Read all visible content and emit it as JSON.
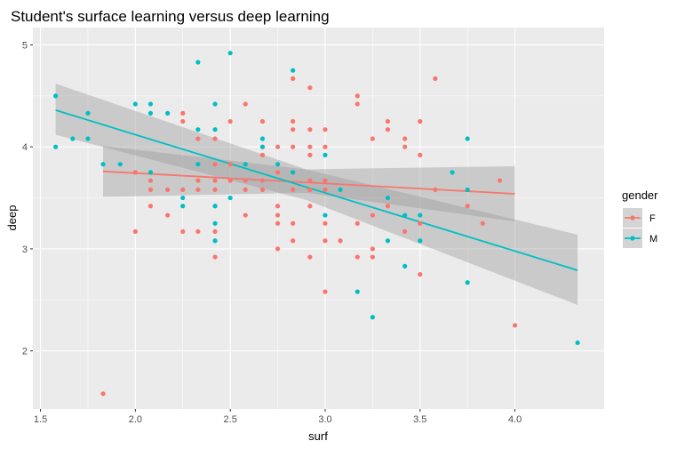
{
  "chart_data": {
    "type": "scatter",
    "title": "Student's surface learning versus deep learning",
    "xlabel": "surf",
    "ylabel": "deep",
    "xlim": [
      1.46,
      4.47
    ],
    "ylim": [
      1.43,
      5.17
    ],
    "xticks": [
      "1.5",
      "2.0",
      "2.5",
      "3.0",
      "3.5",
      "4.0"
    ],
    "yticks": [
      "2",
      "3",
      "4",
      "5"
    ],
    "grid": true,
    "legend": {
      "title": "gender",
      "position": "right"
    },
    "series": [
      {
        "name": "F",
        "color": "#F8766D",
        "points": [
          [
            1.83,
            1.58
          ],
          [
            2.0,
            3.75
          ],
          [
            2.0,
            3.17
          ],
          [
            2.08,
            3.67
          ],
          [
            2.08,
            3.58
          ],
          [
            2.08,
            3.42
          ],
          [
            2.17,
            3.58
          ],
          [
            2.17,
            3.33
          ],
          [
            2.25,
            4.33
          ],
          [
            2.25,
            4.25
          ],
          [
            2.25,
            3.58
          ],
          [
            2.25,
            3.17
          ],
          [
            2.33,
            4.08
          ],
          [
            2.33,
            3.67
          ],
          [
            2.33,
            3.58
          ],
          [
            2.33,
            3.17
          ],
          [
            2.42,
            4.08
          ],
          [
            2.42,
            3.83
          ],
          [
            2.42,
            3.67
          ],
          [
            2.42,
            3.58
          ],
          [
            2.42,
            3.42
          ],
          [
            2.42,
            3.17
          ],
          [
            2.42,
            3.08
          ],
          [
            2.42,
            2.92
          ],
          [
            2.5,
            4.25
          ],
          [
            2.5,
            3.67
          ],
          [
            2.58,
            4.42
          ],
          [
            2.58,
            3.58
          ],
          [
            2.58,
            3.33
          ],
          [
            2.67,
            4.25
          ],
          [
            2.67,
            3.92
          ],
          [
            2.67,
            3.67
          ],
          [
            2.67,
            3.58
          ],
          [
            2.75,
            4.0
          ],
          [
            2.75,
            3.75
          ],
          [
            2.75,
            3.42
          ],
          [
            2.75,
            3.33
          ],
          [
            2.75,
            3.25
          ],
          [
            2.75,
            3.0
          ],
          [
            2.83,
            4.67
          ],
          [
            2.83,
            4.25
          ],
          [
            2.83,
            4.17
          ],
          [
            2.83,
            4.0
          ],
          [
            2.83,
            3.75
          ],
          [
            2.83,
            3.58
          ],
          [
            2.83,
            3.25
          ],
          [
            2.83,
            3.08
          ],
          [
            2.92,
            4.58
          ],
          [
            2.92,
            4.17
          ],
          [
            2.92,
            4.0
          ],
          [
            2.92,
            3.92
          ],
          [
            2.92,
            3.67
          ],
          [
            2.92,
            3.42
          ],
          [
            2.92,
            2.92
          ],
          [
            3.0,
            4.17
          ],
          [
            3.0,
            4.0
          ],
          [
            3.0,
            3.67
          ],
          [
            3.0,
            3.58
          ],
          [
            3.0,
            3.25
          ],
          [
            3.0,
            3.08
          ],
          [
            3.0,
            2.58
          ],
          [
            3.08,
            3.08
          ],
          [
            3.17,
            4.5
          ],
          [
            3.17,
            4.42
          ],
          [
            3.17,
            3.25
          ],
          [
            3.17,
            2.92
          ],
          [
            3.25,
            4.08
          ],
          [
            3.25,
            3.33
          ],
          [
            3.25,
            3.0
          ],
          [
            3.25,
            2.92
          ],
          [
            3.33,
            4.25
          ],
          [
            3.33,
            4.17
          ],
          [
            3.42,
            4.08
          ],
          [
            3.42,
            4.0
          ],
          [
            3.42,
            3.17
          ],
          [
            3.5,
            4.25
          ],
          [
            3.5,
            3.92
          ],
          [
            3.5,
            3.25
          ],
          [
            3.5,
            2.75
          ],
          [
            3.58,
            4.67
          ],
          [
            3.58,
            3.58
          ],
          [
            3.75,
            3.42
          ],
          [
            3.83,
            3.25
          ],
          [
            3.92,
            3.67
          ],
          [
            4.0,
            2.25
          ],
          [
            2.67,
            4.0
          ],
          [
            2.58,
            3.67
          ],
          [
            3.33,
            3.42
          ],
          [
            2.5,
            3.83
          ],
          [
            2.92,
            3.58
          ]
        ],
        "fit": {
          "x": [
            1.83,
            4.0
          ],
          "y": [
            3.76,
            3.54
          ]
        },
        "ribbon": {
          "x": [
            1.83,
            2.9,
            4.0
          ],
          "lower": [
            3.51,
            3.55,
            3.27
          ],
          "upper": [
            4.01,
            3.78,
            3.81
          ]
        }
      },
      {
        "name": "M",
        "color": "#00BFC4",
        "points": [
          [
            1.58,
            4.5
          ],
          [
            1.58,
            4.0
          ],
          [
            1.67,
            4.08
          ],
          [
            1.75,
            4.33
          ],
          [
            1.75,
            4.08
          ],
          [
            1.83,
            3.83
          ],
          [
            1.92,
            3.83
          ],
          [
            2.0,
            4.42
          ],
          [
            2.08,
            4.42
          ],
          [
            2.08,
            4.33
          ],
          [
            2.08,
            3.75
          ],
          [
            2.17,
            4.33
          ],
          [
            2.25,
            3.5
          ],
          [
            2.25,
            3.42
          ],
          [
            2.33,
            4.83
          ],
          [
            2.33,
            4.17
          ],
          [
            2.33,
            3.83
          ],
          [
            2.42,
            4.42
          ],
          [
            2.42,
            4.17
          ],
          [
            2.42,
            3.42
          ],
          [
            2.42,
            3.25
          ],
          [
            2.42,
            3.08
          ],
          [
            2.5,
            4.92
          ],
          [
            2.5,
            3.5
          ],
          [
            2.58,
            3.83
          ],
          [
            2.67,
            4.08
          ],
          [
            2.67,
            4.0
          ],
          [
            2.75,
            3.83
          ],
          [
            2.83,
            4.75
          ],
          [
            2.83,
            3.75
          ],
          [
            3.0,
            3.92
          ],
          [
            3.0,
            3.33
          ],
          [
            3.17,
            2.58
          ],
          [
            3.25,
            2.33
          ],
          [
            3.33,
            3.5
          ],
          [
            3.33,
            3.08
          ],
          [
            3.42,
            3.33
          ],
          [
            3.42,
            2.83
          ],
          [
            3.5,
            3.33
          ],
          [
            3.5,
            3.08
          ],
          [
            3.67,
            3.75
          ],
          [
            3.75,
            4.08
          ],
          [
            3.75,
            3.58
          ],
          [
            3.75,
            2.67
          ],
          [
            4.33,
            2.08
          ],
          [
            3.08,
            3.58
          ]
        ],
        "fit": {
          "x": [
            1.58,
            4.33
          ],
          "y": [
            4.36,
            2.79
          ]
        },
        "ribbon": {
          "x": [
            1.58,
            2.9,
            4.33
          ],
          "lower": [
            4.12,
            3.48,
            2.45
          ],
          "upper": [
            4.62,
            3.78,
            3.14
          ]
        }
      }
    ]
  }
}
